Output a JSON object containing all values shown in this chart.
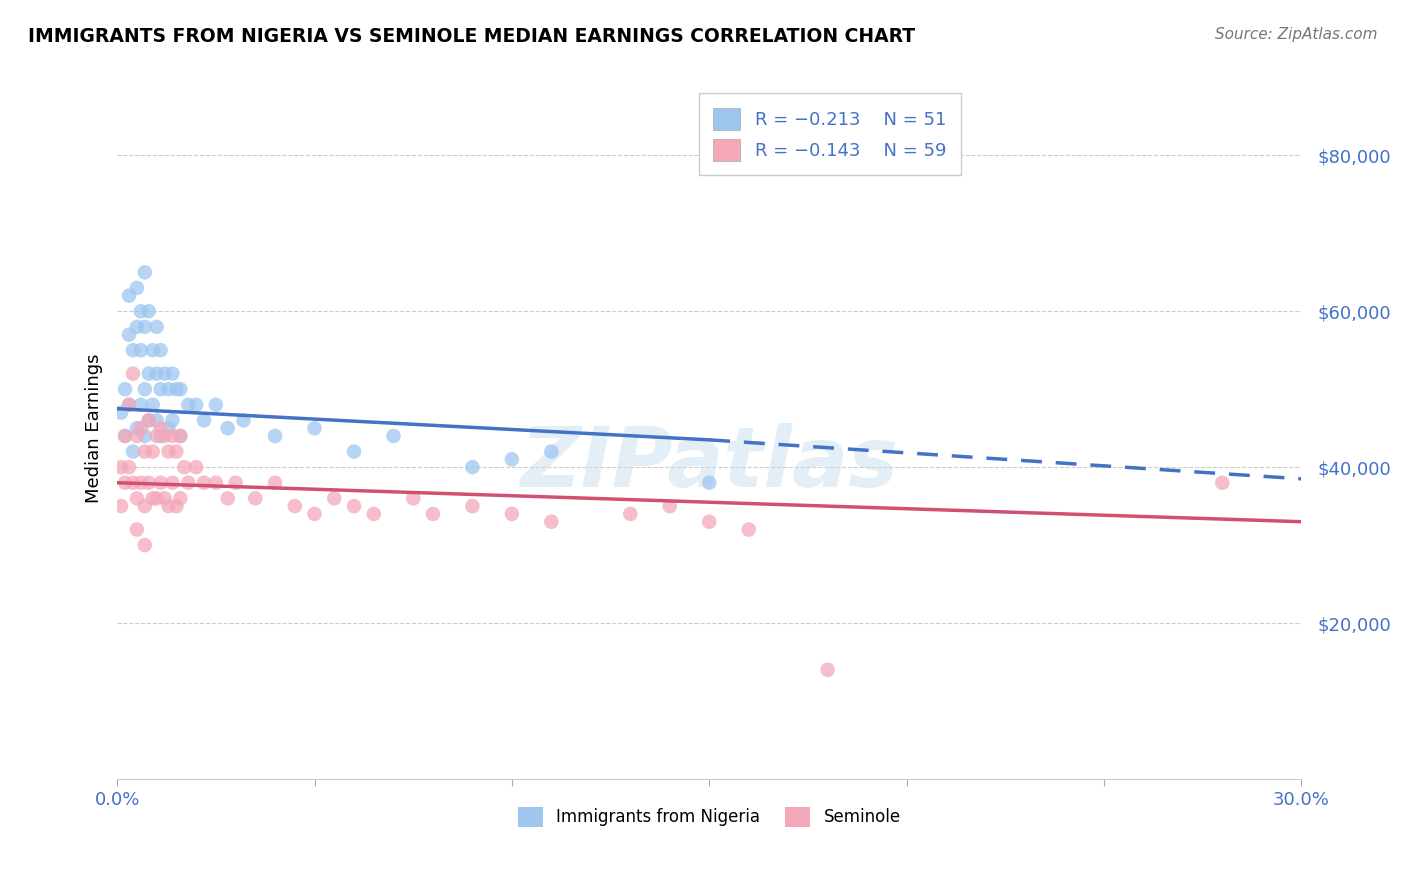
{
  "title": "IMMIGRANTS FROM NIGERIA VS SEMINOLE MEDIAN EARNINGS CORRELATION CHART",
  "source": "Source: ZipAtlas.com",
  "ylabel": "Median Earnings",
  "xmin": 0.0,
  "xmax": 0.3,
  "ymin": 0,
  "ymax": 90000,
  "yticks": [
    20000,
    40000,
    60000,
    80000
  ],
  "ytick_labels": [
    "$20,000",
    "$40,000",
    "$60,000",
    "$80,000"
  ],
  "xticks": [
    0.0,
    0.05,
    0.1,
    0.15,
    0.2,
    0.25,
    0.3
  ],
  "legend_r1": "R = -0.213",
  "legend_n1": "N = 51",
  "legend_r2": "R = -0.143",
  "legend_n2": "N = 59",
  "color_blue": "#9EC6EF",
  "color_blue_line": "#4472C4",
  "color_pink": "#F4A7B9",
  "color_pink_line": "#D05070",
  "color_axis_label": "#4472C4",
  "color_grid": "#CCCCCC",
  "watermark": "ZIPatlas",
  "blue_line_x0": 0.0,
  "blue_line_y0": 47500,
  "blue_line_x1": 0.15,
  "blue_line_y1": 43500,
  "blue_line_dash_x0": 0.15,
  "blue_line_dash_y0": 43500,
  "blue_line_dash_x1": 0.3,
  "blue_line_dash_y1": 38500,
  "pink_line_x0": 0.0,
  "pink_line_y0": 38000,
  "pink_line_x1": 0.3,
  "pink_line_y1": 33000,
  "blue_scatter_x": [
    0.001,
    0.002,
    0.002,
    0.003,
    0.003,
    0.003,
    0.004,
    0.004,
    0.005,
    0.005,
    0.005,
    0.006,
    0.006,
    0.006,
    0.007,
    0.007,
    0.007,
    0.007,
    0.008,
    0.008,
    0.008,
    0.009,
    0.009,
    0.01,
    0.01,
    0.01,
    0.011,
    0.011,
    0.011,
    0.012,
    0.013,
    0.013,
    0.014,
    0.014,
    0.015,
    0.016,
    0.016,
    0.018,
    0.02,
    0.022,
    0.025,
    0.028,
    0.032,
    0.04,
    0.05,
    0.06,
    0.07,
    0.09,
    0.1,
    0.11,
    0.15
  ],
  "blue_scatter_y": [
    47000,
    50000,
    44000,
    62000,
    57000,
    48000,
    55000,
    42000,
    63000,
    58000,
    45000,
    60000,
    55000,
    48000,
    65000,
    58000,
    50000,
    44000,
    60000,
    52000,
    46000,
    55000,
    48000,
    58000,
    52000,
    46000,
    55000,
    50000,
    44000,
    52000,
    50000,
    45000,
    52000,
    46000,
    50000,
    50000,
    44000,
    48000,
    48000,
    46000,
    48000,
    45000,
    46000,
    44000,
    45000,
    42000,
    44000,
    40000,
    41000,
    42000,
    38000
  ],
  "pink_scatter_x": [
    0.001,
    0.001,
    0.002,
    0.002,
    0.003,
    0.003,
    0.004,
    0.004,
    0.005,
    0.005,
    0.005,
    0.006,
    0.006,
    0.007,
    0.007,
    0.007,
    0.008,
    0.008,
    0.009,
    0.009,
    0.01,
    0.01,
    0.011,
    0.011,
    0.012,
    0.012,
    0.013,
    0.013,
    0.014,
    0.014,
    0.015,
    0.015,
    0.016,
    0.016,
    0.017,
    0.018,
    0.02,
    0.022,
    0.025,
    0.028,
    0.03,
    0.035,
    0.04,
    0.045,
    0.05,
    0.055,
    0.06,
    0.065,
    0.075,
    0.08,
    0.09,
    0.1,
    0.11,
    0.13,
    0.14,
    0.15,
    0.16,
    0.18,
    0.28
  ],
  "pink_scatter_y": [
    40000,
    35000,
    44000,
    38000,
    48000,
    40000,
    52000,
    38000,
    44000,
    36000,
    32000,
    45000,
    38000,
    42000,
    35000,
    30000,
    46000,
    38000,
    42000,
    36000,
    44000,
    36000,
    45000,
    38000,
    44000,
    36000,
    42000,
    35000,
    44000,
    38000,
    42000,
    35000,
    44000,
    36000,
    40000,
    38000,
    40000,
    38000,
    38000,
    36000,
    38000,
    36000,
    38000,
    35000,
    34000,
    36000,
    35000,
    34000,
    36000,
    34000,
    35000,
    34000,
    33000,
    34000,
    35000,
    33000,
    32000,
    14000,
    38000
  ]
}
